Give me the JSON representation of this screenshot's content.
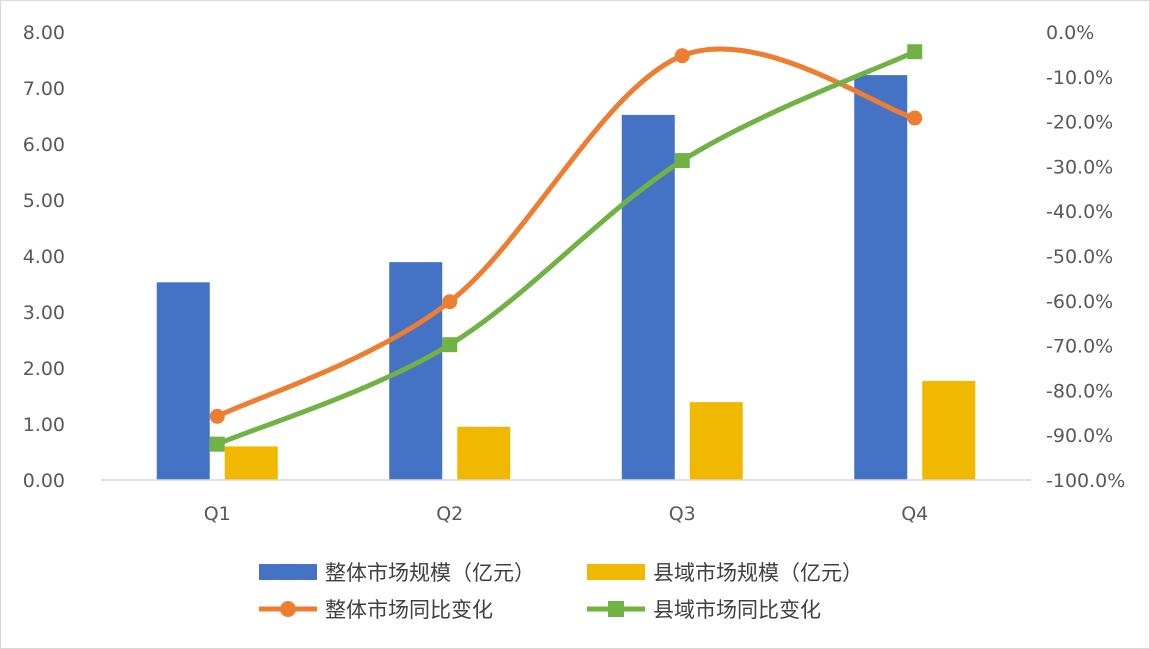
{
  "chart_data": {
    "type": "bar",
    "categories": [
      "Q1",
      "Q2",
      "Q3",
      "Q4"
    ],
    "y_left": {
      "ylim": [
        0,
        8
      ],
      "ticks": [
        "0.00",
        "1.00",
        "2.00",
        "3.00",
        "4.00",
        "5.00",
        "6.00",
        "7.00",
        "8.00"
      ]
    },
    "y_right": {
      "ylim": [
        -100,
        0
      ],
      "ticks": [
        "-100.0%",
        "-90.0%",
        "-80.0%",
        "-70.0%",
        "-60.0%",
        "-50.0%",
        "-40.0%",
        "-30.0%",
        "-20.0%",
        "-10.0%",
        "0.0%"
      ]
    },
    "bar_series": [
      {
        "name": "整体市场规模（亿元）",
        "color": "#4472C4",
        "values": [
          3.53,
          3.89,
          6.52,
          7.23
        ]
      },
      {
        "name": "县域市场规模（亿元）",
        "color": "#F0B800",
        "values": [
          0.6,
          0.95,
          1.39,
          1.77
        ]
      }
    ],
    "line_series": [
      {
        "name": "整体市场同比变化",
        "color": "#ED7D31",
        "marker": "circle",
        "values": [
          -85.8,
          -60.2,
          -5.3,
          -19.2
        ]
      },
      {
        "name": "县域市场同比变化",
        "color": "#70B244",
        "marker": "square",
        "values": [
          -92.0,
          -69.8,
          -28.7,
          -4.4
        ]
      }
    ],
    "legend_position": "bottom",
    "grid": false
  }
}
